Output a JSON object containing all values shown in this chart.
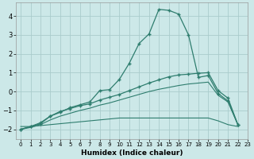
{
  "bg_color": "#cce8e8",
  "grid_color": "#aacccc",
  "line_color": "#2e7d6e",
  "xlabel": "Humidex (Indice chaleur)",
  "xlim": [
    -0.5,
    23
  ],
  "ylim": [
    -2.5,
    4.7
  ],
  "yticks": [
    -2,
    -1,
    0,
    1,
    2,
    3,
    4
  ],
  "xticks": [
    0,
    1,
    2,
    3,
    4,
    5,
    6,
    7,
    8,
    9,
    10,
    11,
    12,
    13,
    14,
    15,
    16,
    17,
    18,
    19,
    20,
    21,
    22,
    23
  ],
  "line1_x": [
    0,
    1,
    2,
    3,
    4,
    5,
    6,
    7,
    8,
    9,
    10,
    11,
    12,
    13,
    14,
    15,
    16,
    17,
    18,
    19,
    20,
    21,
    22
  ],
  "line1_y": [
    -2.0,
    -1.85,
    -1.7,
    -1.3,
    -1.1,
    -0.85,
    -0.7,
    -0.55,
    0.05,
    0.1,
    0.65,
    1.5,
    2.55,
    3.05,
    4.35,
    4.3,
    4.1,
    3.0,
    0.75,
    0.85,
    -0.1,
    -0.5,
    -1.75
  ],
  "line2_x": [
    0,
    1,
    2,
    3,
    4,
    5,
    6,
    7,
    8,
    9,
    10,
    11,
    12,
    13,
    14,
    15,
    16,
    17,
    18,
    19,
    20,
    21,
    22
  ],
  "line2_y": [
    -2.0,
    -1.85,
    -1.65,
    -1.3,
    -1.05,
    -0.9,
    -0.75,
    -0.65,
    -0.45,
    -0.3,
    -0.15,
    0.05,
    0.25,
    0.45,
    0.62,
    0.78,
    0.88,
    0.92,
    0.97,
    1.0,
    0.05,
    -0.35,
    -1.75
  ],
  "line3_x": [
    0,
    1,
    2,
    3,
    4,
    5,
    6,
    7,
    8,
    9,
    10,
    11,
    12,
    13,
    14,
    15,
    16,
    17,
    18,
    19,
    20,
    21,
    22
  ],
  "line3_y": [
    -2.0,
    -1.9,
    -1.75,
    -1.5,
    -1.3,
    -1.15,
    -1.0,
    -0.88,
    -0.72,
    -0.6,
    -0.45,
    -0.3,
    -0.15,
    0.0,
    0.12,
    0.22,
    0.32,
    0.4,
    0.45,
    0.5,
    -0.2,
    -0.55,
    -1.75
  ],
  "line4_x": [
    0,
    1,
    2,
    3,
    4,
    5,
    6,
    7,
    8,
    9,
    10,
    11,
    12,
    13,
    14,
    15,
    16,
    17,
    18,
    19,
    20,
    21,
    22
  ],
  "line4_y": [
    -1.85,
    -1.85,
    -1.8,
    -1.75,
    -1.7,
    -1.65,
    -1.6,
    -1.55,
    -1.5,
    -1.45,
    -1.4,
    -1.4,
    -1.4,
    -1.4,
    -1.4,
    -1.4,
    -1.4,
    -1.4,
    -1.4,
    -1.4,
    -1.55,
    -1.75,
    -1.85
  ]
}
